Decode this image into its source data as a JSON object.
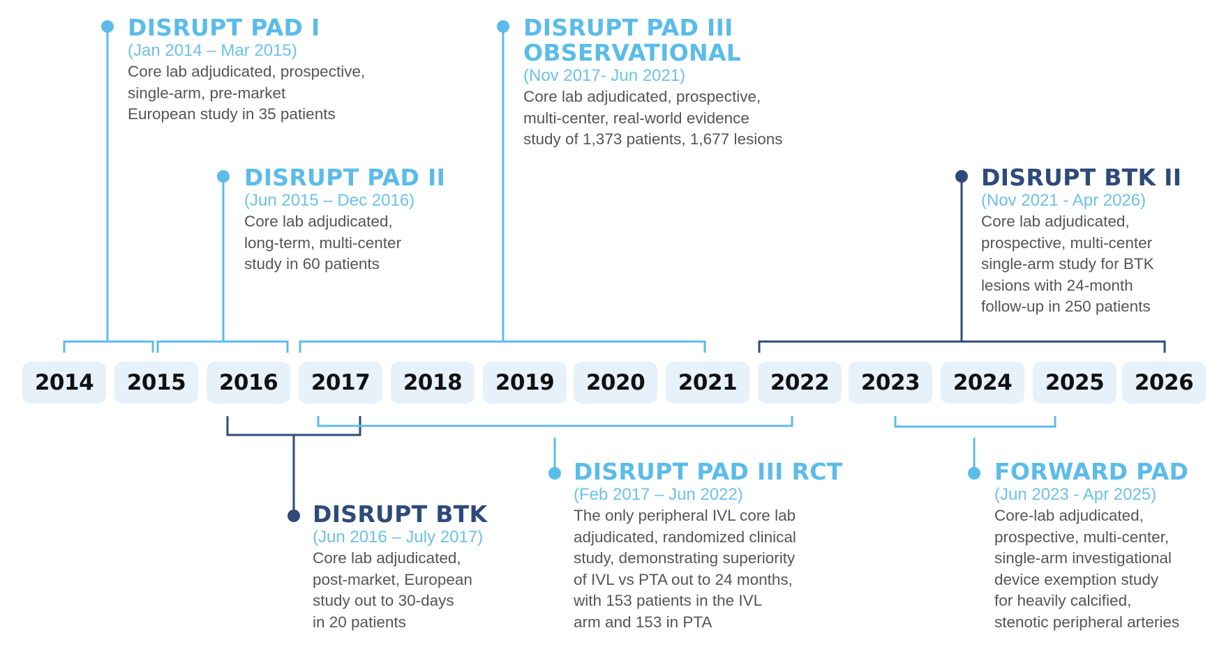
{
  "colors": {
    "light": "#5bbce9",
    "dark": "#2e4a7a",
    "year_box_bg": "#e6f1fa",
    "desc_text": "#555555"
  },
  "years": [
    "2014",
    "2015",
    "2016",
    "2017",
    "2018",
    "2019",
    "2020",
    "2021",
    "2022",
    "2023",
    "2024",
    "2025",
    "2026"
  ],
  "studies": {
    "pad1": {
      "title": "DISRUPT PAD I",
      "dates": "(Jan 2014 – Mar 2015)",
      "desc": [
        "Core lab adjudicated, prospective,",
        "single-arm, pre-market",
        "European study in 35 patients"
      ]
    },
    "pad2": {
      "title": "DISRUPT PAD II",
      "dates": "(Jun 2015 – Dec 2016)",
      "desc": [
        "Core lab adjudicated,",
        "long-term, multi-center",
        "study in 60 patients"
      ]
    },
    "pad3obs": {
      "title": [
        "DISRUPT PAD III",
        "OBSERVATIONAL"
      ],
      "dates": "(Nov 2017- Jun 2021)",
      "desc": [
        "Core lab adjudicated, prospective,",
        "multi-center, real-world evidence",
        "study of 1,373 patients, 1,677 lesions"
      ]
    },
    "btk2": {
      "title": "DISRUPT BTK II",
      "dates": "(Nov 2021 - Apr 2026)",
      "desc": [
        "Core lab adjudicated,",
        "prospective, multi-center",
        "single-arm study for BTK",
        "lesions with 24-month",
        "follow-up in 250 patients"
      ]
    },
    "btk": {
      "title": "DISRUPT BTK",
      "dates": "(Jun 2016 – July 2017)",
      "desc": [
        "Core lab adjudicated,",
        "post-market, European",
        "study out to 30-days",
        "in 20 patients"
      ]
    },
    "pad3rct": {
      "title": "DISRUPT PAD III RCT",
      "dates": "(Feb 2017 – Jun 2022)",
      "desc": [
        "The only peripheral IVL core lab",
        "adjudicated, randomized clinical",
        "study, demonstrating superiority",
        "of IVL vs PTA out to 24 months,",
        "with 153 patients in the IVL",
        "arm and 153 in PTA"
      ]
    },
    "forward": {
      "title": "FORWARD PAD",
      "dates": "(Jun 2023 - Apr 2025)",
      "desc": [
        "Core-lab adjudicated,",
        "prospective, multi-center,",
        "single-arm investigational",
        "device exemption study",
        "for heavily calcified,",
        "stenotic peripheral arteries"
      ]
    }
  }
}
